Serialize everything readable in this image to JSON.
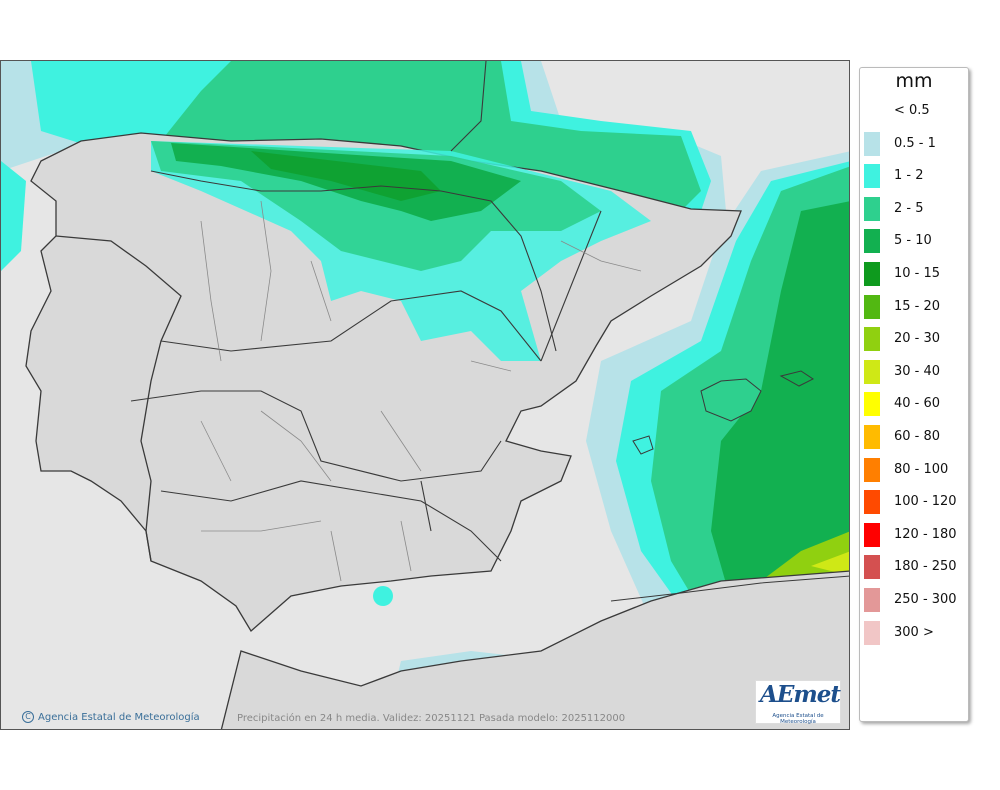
{
  "legend": {
    "unit": "mm",
    "classes": [
      {
        "label": "< 0.5",
        "color": "#ffffff"
      },
      {
        "label": "0.5 - 1",
        "color": "#b7e2e8"
      },
      {
        "label": "1 - 2",
        "color": "#3ff2e0"
      },
      {
        "label": "2 - 5",
        "color": "#2ed08e"
      },
      {
        "label": "5 - 10",
        "color": "#12b050"
      },
      {
        "label": "10 - 15",
        "color": "#0e9a1e"
      },
      {
        "label": "15 - 20",
        "color": "#52b812"
      },
      {
        "label": "20 - 30",
        "color": "#90d010"
      },
      {
        "label": "30 - 40",
        "color": "#cfe816"
      },
      {
        "label": "40 - 60",
        "color": "#ffff00"
      },
      {
        "label": "60 - 80",
        "color": "#ffbb00"
      },
      {
        "label": "80 - 100",
        "color": "#ff7f00"
      },
      {
        "label": "100 - 120",
        "color": "#ff4a00"
      },
      {
        "label": "120 - 180",
        "color": "#ff0000"
      },
      {
        "label": "180 - 250",
        "color": "#d45050"
      },
      {
        "label": "250 - 300",
        "color": "#e39898"
      },
      {
        "label": "300 >",
        "color": "#f1c6c6"
      }
    ]
  },
  "footer": {
    "credit": "Agencia Estatal de Meteorología",
    "copyright_symbol": "C",
    "caption": "Precipitación en 24 h media. Validez: 20251121 Pasada modelo: 2025112000"
  },
  "logo": {
    "wordmark": "AEmet",
    "subtitle": "Agencia Estatal de Meteorología"
  },
  "colors": {
    "land": "#d9d9d9",
    "sea": "#e6e6e6",
    "border": "#3a3a3a",
    "province_border": "#8a8a8a"
  }
}
